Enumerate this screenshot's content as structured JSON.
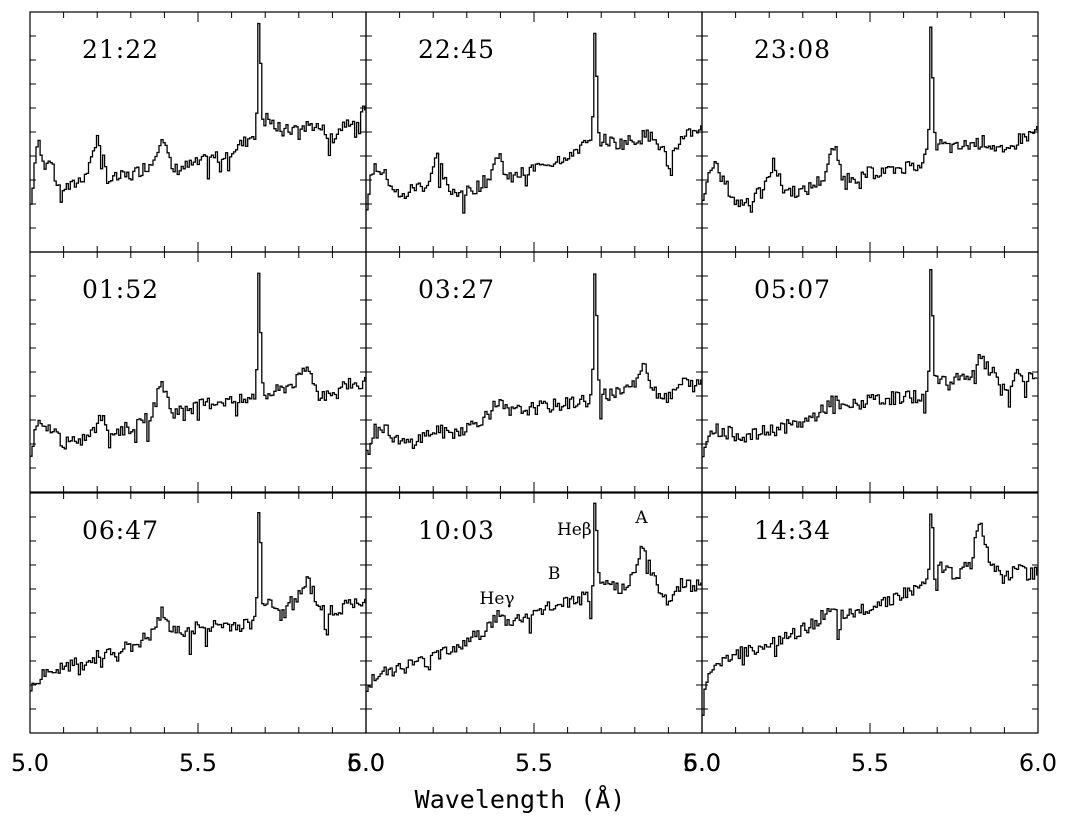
{
  "chart_data": {
    "type": "line",
    "layout": "3x3 grid of stacked spectra, shared x axis per column, y axis unlabeled",
    "xlabel": "Wavelength (Å)",
    "xlim": [
      5.0,
      6.0
    ],
    "x_ticks": [
      "5.0",
      "5.5",
      "6.0"
    ],
    "ylabel": "",
    "ylim": [
      0,
      10
    ],
    "y_tick_count": 10,
    "line_color": "#000000",
    "grid": false,
    "panels": [
      {
        "label": "21:22",
        "peak": 9.3,
        "profile": [
          [
            5.0,
            2.0
          ],
          [
            5.02,
            4.9
          ],
          [
            5.04,
            3.4
          ],
          [
            5.06,
            3.9
          ],
          [
            5.08,
            2.7
          ],
          [
            5.12,
            2.7
          ],
          [
            5.16,
            3.2
          ],
          [
            5.2,
            4.8
          ],
          [
            5.23,
            3.0
          ],
          [
            5.3,
            3.2
          ],
          [
            5.36,
            3.7
          ],
          [
            5.39,
            4.9
          ],
          [
            5.42,
            3.4
          ],
          [
            5.5,
            3.7
          ],
          [
            5.58,
            4.1
          ],
          [
            5.64,
            4.6
          ],
          [
            5.66,
            4.9
          ],
          [
            5.68,
            4.9
          ],
          [
            5.7,
            5.6
          ],
          [
            5.75,
            5.0
          ],
          [
            5.8,
            5.2
          ],
          [
            5.84,
            5.3
          ],
          [
            5.88,
            5.0
          ],
          [
            5.9,
            4.8
          ],
          [
            5.94,
            5.5
          ],
          [
            5.98,
            5.6
          ],
          [
            6.0,
            6.1
          ]
        ]
      },
      {
        "label": "22:45",
        "peak": 9.0,
        "profile": [
          [
            5.0,
            2.0
          ],
          [
            5.02,
            3.6
          ],
          [
            5.04,
            3.4
          ],
          [
            5.06,
            3.1
          ],
          [
            5.1,
            2.2
          ],
          [
            5.14,
            2.7
          ],
          [
            5.18,
            2.8
          ],
          [
            5.21,
            4.0
          ],
          [
            5.24,
            2.6
          ],
          [
            5.3,
            2.5
          ],
          [
            5.36,
            3.0
          ],
          [
            5.39,
            4.1
          ],
          [
            5.42,
            3.0
          ],
          [
            5.5,
            3.5
          ],
          [
            5.56,
            3.8
          ],
          [
            5.64,
            4.4
          ],
          [
            5.66,
            4.5
          ],
          [
            5.68,
            4.5
          ],
          [
            5.7,
            4.7
          ],
          [
            5.75,
            4.5
          ],
          [
            5.8,
            4.7
          ],
          [
            5.84,
            4.9
          ],
          [
            5.88,
            4.3
          ],
          [
            5.9,
            3.6
          ],
          [
            5.94,
            4.9
          ],
          [
            5.98,
            5.1
          ],
          [
            6.0,
            5.3
          ]
        ]
      },
      {
        "label": "23:08",
        "peak": 9.1,
        "profile": [
          [
            5.0,
            2.0
          ],
          [
            5.02,
            3.6
          ],
          [
            5.04,
            3.5
          ],
          [
            5.06,
            3.0
          ],
          [
            5.1,
            2.0
          ],
          [
            5.14,
            2.2
          ],
          [
            5.18,
            2.5
          ],
          [
            5.21,
            3.7
          ],
          [
            5.24,
            2.6
          ],
          [
            5.3,
            2.5
          ],
          [
            5.36,
            3.1
          ],
          [
            5.39,
            4.4
          ],
          [
            5.42,
            3.0
          ],
          [
            5.5,
            3.3
          ],
          [
            5.56,
            3.4
          ],
          [
            5.64,
            3.7
          ],
          [
            5.66,
            3.9
          ],
          [
            5.68,
            4.2
          ],
          [
            5.7,
            4.5
          ],
          [
            5.75,
            4.3
          ],
          [
            5.8,
            4.5
          ],
          [
            5.84,
            4.6
          ],
          [
            5.88,
            4.3
          ],
          [
            5.9,
            4.0
          ],
          [
            5.94,
            4.7
          ],
          [
            5.98,
            4.9
          ],
          [
            6.0,
            5.2
          ]
        ]
      },
      {
        "label": "01:52",
        "peak": 9.0,
        "profile": [
          [
            5.0,
            1.5
          ],
          [
            5.02,
            2.9
          ],
          [
            5.04,
            2.5
          ],
          [
            5.06,
            2.7
          ],
          [
            5.1,
            2.0
          ],
          [
            5.14,
            2.1
          ],
          [
            5.18,
            2.4
          ],
          [
            5.21,
            3.1
          ],
          [
            5.24,
            2.5
          ],
          [
            5.3,
            2.7
          ],
          [
            5.36,
            3.3
          ],
          [
            5.39,
            4.6
          ],
          [
            5.42,
            3.3
          ],
          [
            5.5,
            3.6
          ],
          [
            5.56,
            3.8
          ],
          [
            5.64,
            3.8
          ],
          [
            5.66,
            3.9
          ],
          [
            5.68,
            4.3
          ],
          [
            5.7,
            4.0
          ],
          [
            5.75,
            4.3
          ],
          [
            5.8,
            4.7
          ],
          [
            5.82,
            5.2
          ],
          [
            5.86,
            4.2
          ],
          [
            5.9,
            3.9
          ],
          [
            5.94,
            4.6
          ],
          [
            5.98,
            4.4
          ],
          [
            6.0,
            4.7
          ]
        ]
      },
      {
        "label": "03:27",
        "peak": 9.0,
        "profile": [
          [
            5.0,
            1.5
          ],
          [
            5.02,
            2.6
          ],
          [
            5.04,
            2.4
          ],
          [
            5.06,
            2.6
          ],
          [
            5.1,
            2.0
          ],
          [
            5.14,
            2.1
          ],
          [
            5.18,
            2.4
          ],
          [
            5.21,
            2.6
          ],
          [
            5.24,
            2.4
          ],
          [
            5.3,
            2.7
          ],
          [
            5.36,
            3.2
          ],
          [
            5.39,
            3.8
          ],
          [
            5.42,
            3.3
          ],
          [
            5.5,
            3.5
          ],
          [
            5.56,
            3.6
          ],
          [
            5.64,
            3.8
          ],
          [
            5.66,
            3.8
          ],
          [
            5.68,
            4.1
          ],
          [
            5.7,
            4.0
          ],
          [
            5.75,
            4.2
          ],
          [
            5.8,
            4.6
          ],
          [
            5.82,
            5.3
          ],
          [
            5.86,
            4.2
          ],
          [
            5.9,
            3.9
          ],
          [
            5.94,
            4.6
          ],
          [
            5.98,
            4.4
          ],
          [
            6.0,
            4.6
          ]
        ]
      },
      {
        "label": "05:07",
        "peak": 9.1,
        "profile": [
          [
            5.0,
            1.5
          ],
          [
            5.02,
            2.7
          ],
          [
            5.04,
            2.6
          ],
          [
            5.06,
            2.5
          ],
          [
            5.1,
            2.4
          ],
          [
            5.14,
            2.3
          ],
          [
            5.18,
            2.5
          ],
          [
            5.21,
            2.6
          ],
          [
            5.24,
            2.7
          ],
          [
            5.3,
            2.9
          ],
          [
            5.36,
            3.4
          ],
          [
            5.39,
            4.0
          ],
          [
            5.42,
            3.5
          ],
          [
            5.5,
            3.8
          ],
          [
            5.56,
            3.9
          ],
          [
            5.64,
            4.0
          ],
          [
            5.66,
            4.0
          ],
          [
            5.68,
            4.4
          ],
          [
            5.7,
            4.6
          ],
          [
            5.75,
            4.8
          ],
          [
            5.8,
            4.9
          ],
          [
            5.82,
            5.6
          ],
          [
            5.86,
            5.0
          ],
          [
            5.9,
            4.2
          ],
          [
            5.94,
            4.9
          ],
          [
            5.98,
            4.8
          ],
          [
            6.0,
            5.0
          ]
        ]
      },
      {
        "label": "06:47",
        "peak": 9.1,
        "profile": [
          [
            5.0,
            1.7
          ],
          [
            5.02,
            2.2
          ],
          [
            5.04,
            2.5
          ],
          [
            5.06,
            2.6
          ],
          [
            5.1,
            2.7
          ],
          [
            5.14,
            2.9
          ],
          [
            5.18,
            3.0
          ],
          [
            5.21,
            3.3
          ],
          [
            5.24,
            3.4
          ],
          [
            5.3,
            3.6
          ],
          [
            5.36,
            4.1
          ],
          [
            5.39,
            5.0
          ],
          [
            5.42,
            4.2
          ],
          [
            5.5,
            4.4
          ],
          [
            5.56,
            4.5
          ],
          [
            5.64,
            4.5
          ],
          [
            5.66,
            4.6
          ],
          [
            5.68,
            5.0
          ],
          [
            5.7,
            5.6
          ],
          [
            5.75,
            5.2
          ],
          [
            5.8,
            5.8
          ],
          [
            5.82,
            6.5
          ],
          [
            5.86,
            5.3
          ],
          [
            5.9,
            5.0
          ],
          [
            5.94,
            5.4
          ],
          [
            5.98,
            5.3
          ],
          [
            6.0,
            5.5
          ]
        ]
      },
      {
        "label": "10:03",
        "peak": 9.4,
        "profile": [
          [
            5.0,
            1.7
          ],
          [
            5.02,
            2.4
          ],
          [
            5.04,
            2.6
          ],
          [
            5.06,
            2.6
          ],
          [
            5.1,
            2.7
          ],
          [
            5.14,
            2.9
          ],
          [
            5.18,
            3.0
          ],
          [
            5.21,
            3.3
          ],
          [
            5.24,
            3.5
          ],
          [
            5.3,
            3.8
          ],
          [
            5.36,
            4.4
          ],
          [
            5.39,
            4.9
          ],
          [
            5.42,
            4.6
          ],
          [
            5.5,
            5.0
          ],
          [
            5.56,
            5.3
          ],
          [
            5.64,
            5.6
          ],
          [
            5.66,
            5.7
          ],
          [
            5.68,
            6.0
          ],
          [
            5.7,
            6.3
          ],
          [
            5.75,
            6.0
          ],
          [
            5.8,
            6.6
          ],
          [
            5.82,
            7.9
          ],
          [
            5.86,
            6.2
          ],
          [
            5.9,
            5.5
          ],
          [
            5.94,
            6.3
          ],
          [
            5.98,
            6.1
          ],
          [
            6.0,
            6.3
          ]
        ]
      },
      {
        "label": "14:34",
        "peak": 9.1,
        "profile": [
          [
            5.0,
            1.8
          ],
          [
            5.02,
            2.5
          ],
          [
            5.04,
            2.9
          ],
          [
            5.06,
            3.1
          ],
          [
            5.1,
            3.3
          ],
          [
            5.14,
            3.5
          ],
          [
            5.18,
            3.6
          ],
          [
            5.21,
            3.8
          ],
          [
            5.24,
            3.9
          ],
          [
            5.3,
            4.3
          ],
          [
            5.36,
            4.9
          ],
          [
            5.39,
            5.0
          ],
          [
            5.42,
            4.8
          ],
          [
            5.5,
            5.3
          ],
          [
            5.56,
            5.6
          ],
          [
            5.64,
            6.0
          ],
          [
            5.66,
            6.2
          ],
          [
            5.68,
            6.8
          ],
          [
            5.7,
            7.0
          ],
          [
            5.75,
            6.6
          ],
          [
            5.8,
            7.0
          ],
          [
            5.82,
            9.0
          ],
          [
            5.86,
            6.9
          ],
          [
            5.9,
            6.4
          ],
          [
            5.94,
            6.9
          ],
          [
            5.98,
            6.6
          ],
          [
            6.0,
            6.8
          ]
        ]
      }
    ],
    "peak_x": 5.68,
    "annotations": [
      {
        "text": "Heγ",
        "panel": 7,
        "x": 5.39
      },
      {
        "text": "Heβ",
        "panel": 7,
        "x": 5.62
      },
      {
        "text": "B",
        "panel": 7,
        "x": 5.56
      },
      {
        "text": "A",
        "panel": 7,
        "x": 5.82
      }
    ]
  }
}
